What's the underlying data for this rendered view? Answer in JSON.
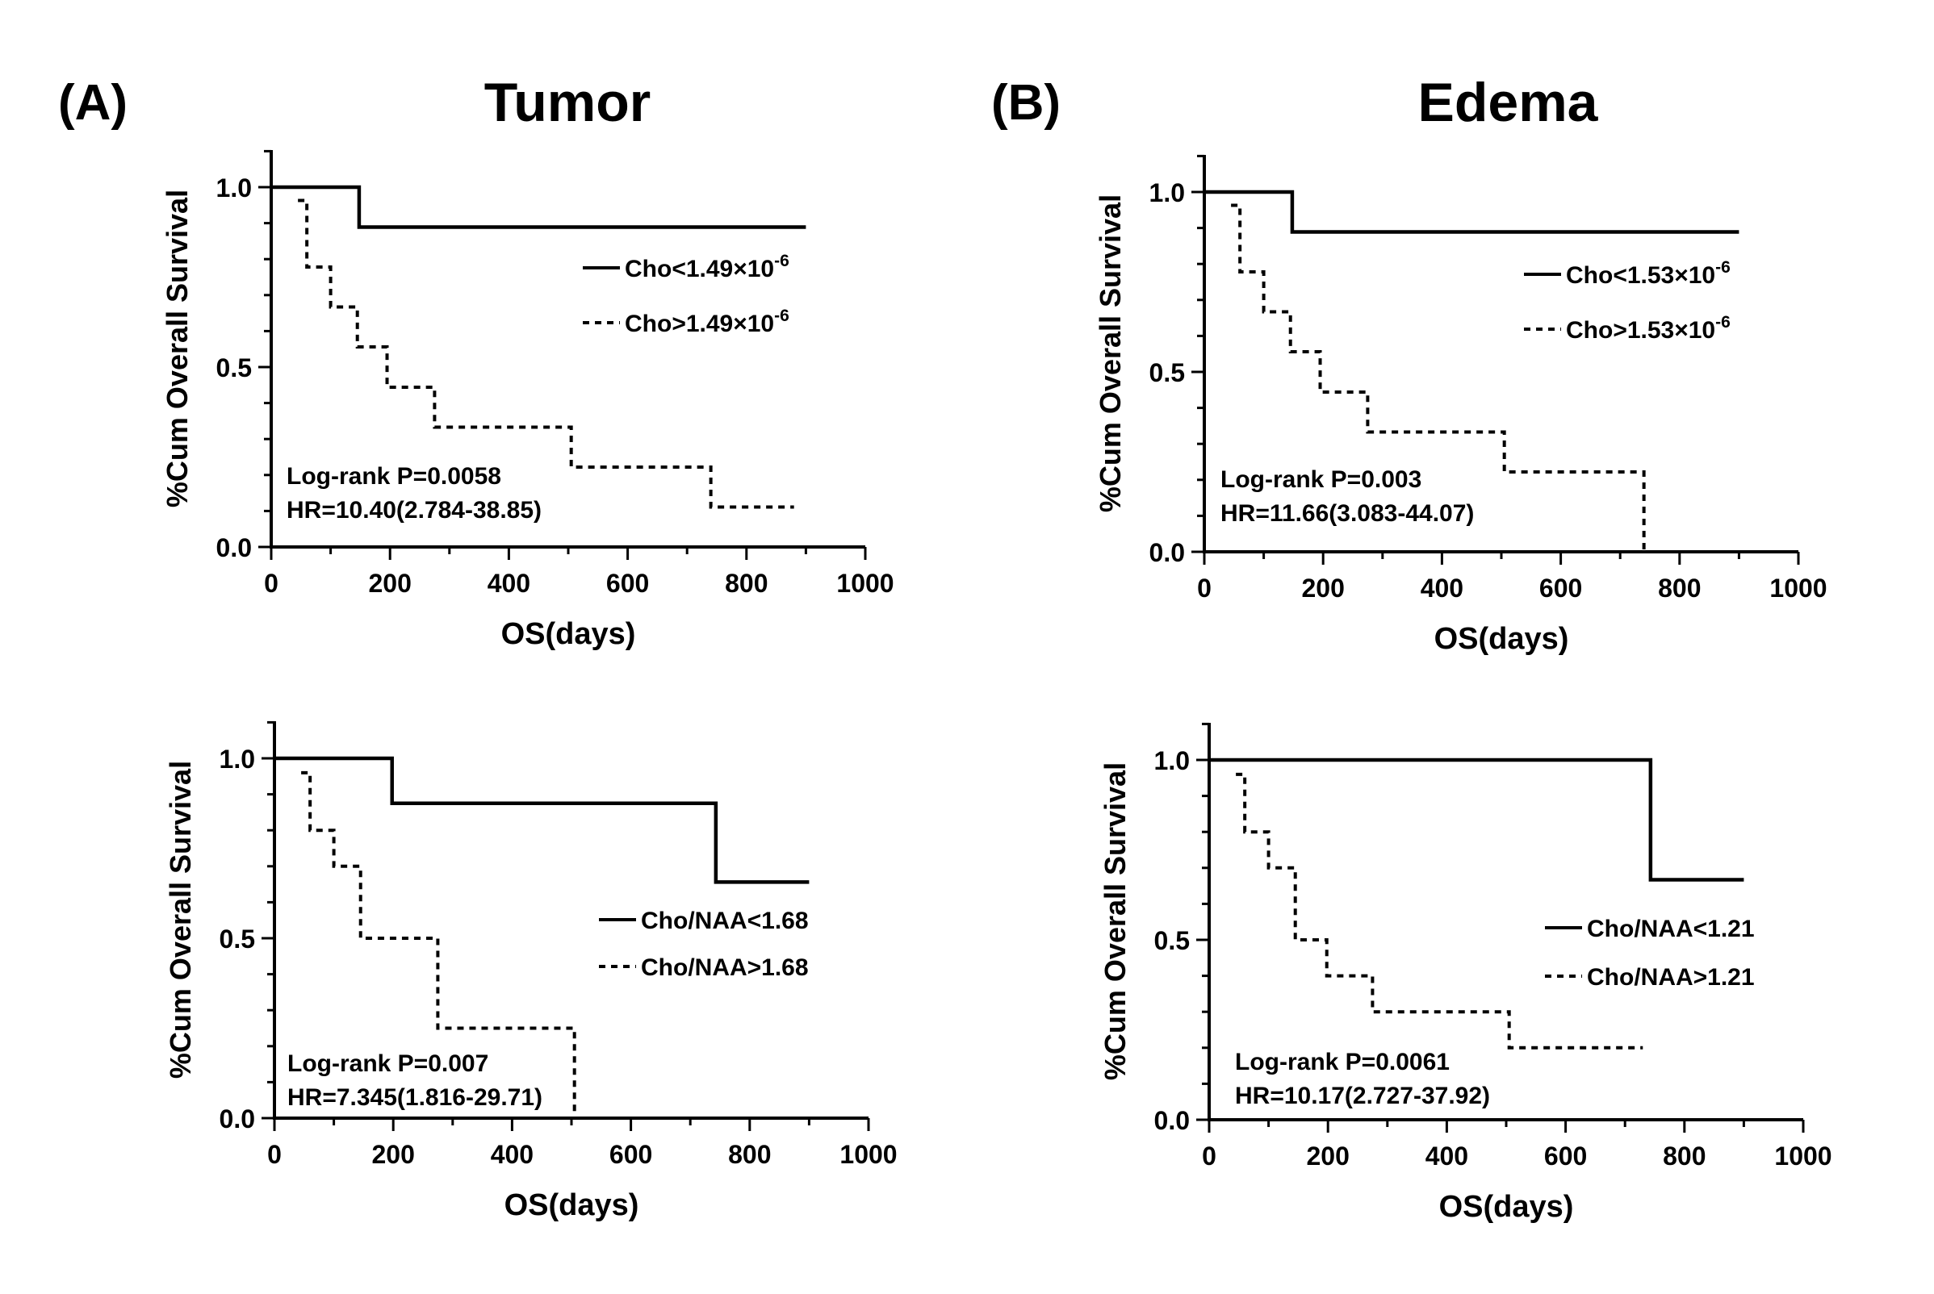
{
  "labels": {
    "panel_a": "(A)",
    "panel_b": "(B)",
    "title_a": "Tumor",
    "title_b": "Edema"
  },
  "chart_data": [
    {
      "type": "line",
      "subtype": "kaplan-meier",
      "panel": "A",
      "column_title": "Tumor",
      "xlabel": "OS(days)",
      "ylabel": "%Cum Overall Survival",
      "xlim": [
        0,
        1000
      ],
      "ylim": [
        0,
        1.1
      ],
      "xticks": [
        0,
        200,
        400,
        600,
        800,
        1000
      ],
      "yticks": [
        0.0,
        0.5,
        1.0
      ],
      "legend_position": "right",
      "series": [
        {
          "name": "Cho<1.49×10",
          "superscript": "-6",
          "style": "solid",
          "steps": [
            [
              0,
              1.0
            ],
            [
              148,
              0.889
            ],
            [
              900,
              0.889
            ]
          ]
        },
        {
          "name": "Cho>1.49×10",
          "superscript": "-6",
          "style": "dashed",
          "steps": [
            [
              45,
              0.963
            ],
            [
              60,
              0.778
            ],
            [
              100,
              0.667
            ],
            [
              145,
              0.556
            ],
            [
              195,
              0.444
            ],
            [
              275,
              0.333
            ],
            [
              505,
              0.222
            ],
            [
              740,
              0.111
            ],
            [
              880,
              0.111
            ]
          ]
        }
      ],
      "annotations": [
        "Log-rank P=0.0058",
        "HR=10.40(2.784-38.85)"
      ]
    },
    {
      "type": "line",
      "subtype": "kaplan-meier",
      "panel": "B",
      "column_title": "Edema",
      "xlabel": "OS(days)",
      "ylabel": "%Cum Overall Survival",
      "xlim": [
        0,
        1000
      ],
      "ylim": [
        0,
        1.1
      ],
      "xticks": [
        0,
        200,
        400,
        600,
        800,
        1000
      ],
      "yticks": [
        0.0,
        0.5,
        1.0
      ],
      "legend_position": "right",
      "series": [
        {
          "name": "Cho<1.53×10",
          "superscript": "-6",
          "style": "solid",
          "steps": [
            [
              0,
              1.0
            ],
            [
              148,
              0.889
            ],
            [
              900,
              0.889
            ]
          ]
        },
        {
          "name": "Cho>1.53×10",
          "superscript": "-6",
          "style": "dashed",
          "steps": [
            [
              45,
              0.963
            ],
            [
              60,
              0.778
            ],
            [
              100,
              0.667
            ],
            [
              145,
              0.556
            ],
            [
              195,
              0.444
            ],
            [
              275,
              0.333
            ],
            [
              505,
              0.222
            ],
            [
              740,
              0.0
            ]
          ]
        }
      ],
      "annotations": [
        "Log-rank P=0.003",
        "HR=11.66(3.083-44.07)"
      ]
    },
    {
      "type": "line",
      "subtype": "kaplan-meier",
      "panel": "A",
      "xlabel": "OS(days)",
      "ylabel": "%Cum Overall Survival",
      "xlim": [
        0,
        1000
      ],
      "ylim": [
        0,
        1.1
      ],
      "xticks": [
        0,
        200,
        400,
        600,
        800,
        1000
      ],
      "yticks": [
        0.0,
        0.5,
        1.0
      ],
      "legend_position": "right",
      "series": [
        {
          "name": "Cho/NAA<1.68",
          "superscript": "",
          "style": "solid",
          "steps": [
            [
              0,
              1.0
            ],
            [
              198,
              0.875
            ],
            [
              743,
              0.656
            ],
            [
              900,
              0.656
            ]
          ]
        },
        {
          "name": "Cho/NAA>1.68",
          "superscript": "",
          "style": "dashed",
          "steps": [
            [
              45,
              0.96
            ],
            [
              60,
              0.8
            ],
            [
              100,
              0.7
            ],
            [
              145,
              0.5
            ],
            [
              275,
              0.25
            ],
            [
              505,
              0.0
            ]
          ]
        }
      ],
      "annotations": [
        "Log-rank P=0.007",
        "HR=7.345(1.816-29.71)"
      ]
    },
    {
      "type": "line",
      "subtype": "kaplan-meier",
      "panel": "B",
      "xlabel": "OS(days)",
      "ylabel": "%Cum Overall Survival",
      "xlim": [
        0,
        1000
      ],
      "ylim": [
        0,
        1.1
      ],
      "xticks": [
        0,
        200,
        400,
        600,
        800,
        1000
      ],
      "yticks": [
        0.0,
        0.5,
        1.0
      ],
      "legend_position": "right",
      "series": [
        {
          "name": "Cho/NAA<1.21",
          "superscript": "",
          "style": "solid",
          "steps": [
            [
              0,
              1.0
            ],
            [
              743,
              0.667
            ],
            [
              900,
              0.667
            ]
          ]
        },
        {
          "name": "Cho/NAA>1.21",
          "superscript": "",
          "style": "dashed",
          "steps": [
            [
              45,
              0.96
            ],
            [
              60,
              0.8
            ],
            [
              100,
              0.7
            ],
            [
              145,
              0.5
            ],
            [
              198,
              0.4
            ],
            [
              275,
              0.3
            ],
            [
              505,
              0.2
            ],
            [
              730,
              0.2
            ]
          ]
        }
      ],
      "annotations": [
        "Log-rank P=0.0061",
        "HR=10.17(2.727-37.92)"
      ]
    }
  ]
}
